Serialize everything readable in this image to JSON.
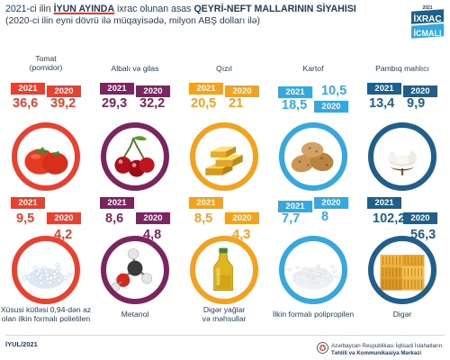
{
  "header": {
    "title_pre": "2021-ci ilin ",
    "title_hl": "İYUN AYINDA",
    "title_mid": " ixrac olunan asas ",
    "title_hl2": "QEYRİ-NEFT MALLARININ SİYAHISI",
    "subtitle": "(2020-ci ilin eyni dövrü ilə müqayisədə, milyon ABŞ dolları ilə)"
  },
  "badge": {
    "year": "2021",
    "line1": "İXRAC",
    "line2": "İCMALI"
  },
  "chart_data": {
    "type": "table",
    "series_years": [
      "2021",
      "2020"
    ],
    "categories": [
      "Tomat (pomidor)",
      "Albalı və gilas",
      "Qızıl",
      "Kartof",
      "Pambıq mahlıcı",
      "Xüsusi kütləsi 0,94-dən az olan ilkin formalı polietilen",
      "Metanol",
      "Digər yağlar və məhsullar",
      "İlkin formalı polipropilen",
      "Digər"
    ],
    "series": [
      {
        "name": "2021",
        "values": [
          36.6,
          29.3,
          20.5,
          18.5,
          13.4,
          9.5,
          8.6,
          8.5,
          7.7,
          102.2
        ]
      },
      {
        "name": "2020",
        "values": [
          39.2,
          32.2,
          21,
          10.5,
          9.9,
          4.2,
          4.8,
          4.3,
          8,
          56.3
        ]
      }
    ]
  },
  "items": [
    {
      "label": "Tomat\n(pomidor)",
      "y2021": "2021",
      "y2020": "2020",
      "v2021": "36,6",
      "v2020": "39,2",
      "color": "#e8412f",
      "icon": "tomato-icon"
    },
    {
      "label": "Albalı və gilas",
      "y2021": "2021",
      "y2020": "2020",
      "v2021": "29,3",
      "v2020": "32,2",
      "color": "#7b2460",
      "icon": "cherry-icon"
    },
    {
      "label": "Qızıl",
      "y2021": "2021",
      "y2020": "2020",
      "v2021": "20,5",
      "v2020": "21",
      "color": "#f4a21d",
      "icon": "gold-bars-icon"
    },
    {
      "label": "Kartof",
      "y2021": "2021",
      "y2020": "2020",
      "v2021": "18,5",
      "v2020": "10,5",
      "color": "#35a9dd",
      "icon": "potato-icon"
    },
    {
      "label": "Pambıq mahlıcı",
      "y2021": "2021",
      "y2020": "2020",
      "v2021": "13,4",
      "v2020": "9,9",
      "color": "#1f5f8b",
      "icon": "cotton-icon"
    },
    {
      "label": "Xüsusi kütləsi 0,94-dən az\nolan ilkin formalı polietilen",
      "y2021": "2021",
      "y2020": "2020",
      "v2021": "9,5",
      "v2020": "4,2",
      "color": "#e8412f",
      "icon": "polyethylene-granules-icon"
    },
    {
      "label": "Metanol",
      "y2021": "2021",
      "y2020": "2020",
      "v2021": "8,6",
      "v2020": "4,8",
      "color": "#7b2460",
      "icon": "methanol-molecule-icon"
    },
    {
      "label": "Digər yağlar\nvə məhsullar",
      "y2021": "2021",
      "y2020": "2020",
      "v2021": "8,5",
      "v2020": "4,3",
      "color": "#f4a21d",
      "icon": "oil-bottle-icon"
    },
    {
      "label": "İlkin formalı polipropilen",
      "y2021": "2021",
      "y2020": "2020",
      "v2021": "7,7",
      "v2020": "8",
      "color": "#35a9dd",
      "icon": "polypropylene-granules-icon"
    },
    {
      "label": "Digər",
      "y2021": "2021",
      "y2020": "2020",
      "v2021": "102,2",
      "v2020": "56,3",
      "color": "#1f5f8b",
      "icon": "containers-icon"
    }
  ],
  "footer": {
    "date": "İYUL/2021",
    "org_line1": "Azərbaycan Respublikası İqtisadi İslahatların",
    "org_line2": "Təhlili və Kommunikasiya Mərkəzi"
  }
}
